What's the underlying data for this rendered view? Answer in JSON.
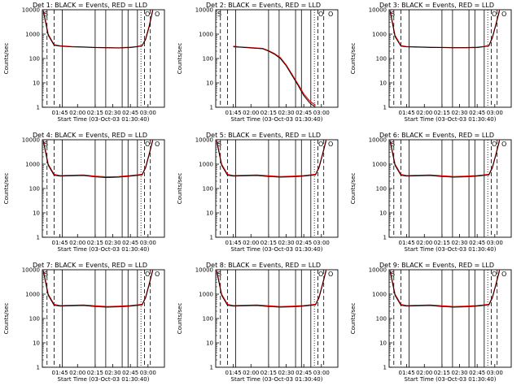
{
  "page": {
    "panel_titles": [
      "Det 1:  BLACK = Events, RED = LLD",
      "Det 2:  BLACK = Events, RED = LLD",
      "Det 3:  BLACK = Events, RED = LLD",
      "Det 4:  BLACK = Events, RED = LLD",
      "Det 5:  BLACK = Events, RED = LLD",
      "Det 6:  BLACK = Events, RED = LLD",
      "Det 7:  BLACK = Events, RED = LLD",
      "Det 8:  BLACK = Events, RED = LLD",
      "Det 9:  BLACK = Events, RED = LLD"
    ]
  },
  "chart_data": {
    "type": "line",
    "layout": "3x3 grid of small multiples",
    "colors": {
      "events": "#000000",
      "lld": "#ff0000"
    },
    "series_names": [
      "BLACK = Events",
      "RED = LLD"
    ],
    "xlabel": "Start Time (03-Oct-03 01:30:40)",
    "ylabel": "Counts/sec",
    "x_range": [
      "01:30",
      "03:14"
    ],
    "x_ticks": [
      "01:45",
      "02:00",
      "02:15",
      "02:30",
      "02:45",
      "03:00"
    ],
    "yscale": "log",
    "ylim": [
      1,
      10000
    ],
    "y_ticks": [
      "1",
      "10",
      "100",
      "1000",
      "10000"
    ],
    "markers": [
      "S",
      "O",
      "O"
    ],
    "panels": [
      {
        "title": "Det 1:  BLACK = Events, RED = LLD",
        "x": [
          "01:31",
          "01:35",
          "01:40",
          "01:45",
          "01:55",
          "02:05",
          "02:15",
          "02:25",
          "02:35",
          "02:45",
          "02:50",
          "02:55",
          "02:58",
          "03:01",
          "03:04"
        ],
        "events": [
          8000,
          900,
          350,
          320,
          300,
          290,
          280,
          275,
          270,
          280,
          300,
          330,
          600,
          2000,
          9000
        ],
        "lld": [
          9000,
          1000,
          370,
          330,
          310,
          300,
          285,
          280,
          275,
          290,
          310,
          340,
          650,
          2200,
          10000
        ]
      },
      {
        "title": "Det 2:  BLACK = Events, RED = LLD",
        "x": [
          "01:45",
          "01:50",
          "02:00",
          "02:10",
          "02:15",
          "02:20",
          "02:25",
          "02:30",
          "02:35",
          "02:40",
          "02:45",
          "02:50",
          "02:55"
        ],
        "events": [
          300,
          290,
          270,
          250,
          200,
          150,
          100,
          50,
          20,
          8,
          3,
          1.5,
          1
        ],
        "lld": [
          320,
          300,
          280,
          260,
          210,
          160,
          110,
          55,
          22,
          9,
          3.5,
          1.8,
          1.2
        ]
      },
      {
        "title": "Det 3:  BLACK = Events, RED = LLD",
        "x": [
          "01:31",
          "01:35",
          "01:40",
          "01:45",
          "01:55",
          "02:05",
          "02:15",
          "02:25",
          "02:35",
          "02:45",
          "02:50",
          "02:55",
          "02:58",
          "03:01",
          "03:04"
        ],
        "events": [
          8000,
          800,
          320,
          300,
          290,
          285,
          280,
          275,
          275,
          280,
          300,
          330,
          700,
          2500,
          9000
        ],
        "lld": [
          9000,
          900,
          340,
          310,
          300,
          290,
          285,
          280,
          280,
          290,
          310,
          340,
          750,
          2700,
          10000
        ]
      },
      {
        "title": "Det 4:  BLACK = Events, RED = LLD",
        "x": [
          "01:31",
          "01:35",
          "01:40",
          "01:45",
          "01:55",
          "02:05",
          "02:15",
          "02:25",
          "02:35",
          "02:45",
          "02:50",
          "02:55",
          "02:58",
          "03:01",
          "03:04"
        ],
        "events": [
          8000,
          900,
          350,
          320,
          330,
          340,
          300,
          280,
          290,
          320,
          340,
          360,
          700,
          2500,
          9000
        ],
        "lld": [
          9000,
          1000,
          380,
          340,
          350,
          360,
          320,
          300,
          310,
          340,
          360,
          380,
          750,
          2700,
          10000
        ]
      },
      {
        "title": "Det 5:  BLACK = Events, RED = LLD",
        "x": [
          "01:31",
          "01:35",
          "01:40",
          "01:45",
          "01:55",
          "02:05",
          "02:15",
          "02:25",
          "02:35",
          "02:45",
          "02:50",
          "02:55",
          "02:58",
          "03:01",
          "03:04"
        ],
        "events": [
          8000,
          900,
          350,
          320,
          330,
          340,
          310,
          290,
          300,
          320,
          340,
          360,
          700,
          2500,
          9000
        ],
        "lld": [
          9000,
          1000,
          380,
          340,
          350,
          360,
          330,
          310,
          320,
          340,
          360,
          380,
          750,
          2700,
          10000
        ]
      },
      {
        "title": "Det 6:  BLACK = Events, RED = LLD",
        "x": [
          "01:31",
          "01:35",
          "01:40",
          "01:45",
          "01:55",
          "02:05",
          "02:15",
          "02:25",
          "02:35",
          "02:45",
          "02:50",
          "02:55",
          "02:58",
          "03:01",
          "03:04"
        ],
        "events": [
          8000,
          900,
          350,
          320,
          330,
          340,
          310,
          290,
          300,
          320,
          340,
          360,
          700,
          2500,
          9000
        ],
        "lld": [
          9000,
          1000,
          380,
          340,
          350,
          360,
          330,
          310,
          320,
          340,
          360,
          380,
          750,
          2700,
          10000
        ]
      },
      {
        "title": "Det 7:  BLACK = Events, RED = LLD",
        "x": [
          "01:31",
          "01:35",
          "01:40",
          "01:45",
          "01:55",
          "02:05",
          "02:15",
          "02:25",
          "02:35",
          "02:45",
          "02:50",
          "02:55",
          "02:58",
          "03:01",
          "03:04"
        ],
        "events": [
          8000,
          900,
          350,
          320,
          330,
          340,
          310,
          290,
          300,
          320,
          340,
          360,
          700,
          2500,
          9000
        ],
        "lld": [
          9000,
          1000,
          380,
          340,
          350,
          360,
          330,
          310,
          320,
          340,
          360,
          380,
          750,
          2700,
          10000
        ]
      },
      {
        "title": "Det 8:  BLACK = Events, RED = LLD",
        "x": [
          "01:31",
          "01:35",
          "01:40",
          "01:45",
          "01:55",
          "02:05",
          "02:15",
          "02:25",
          "02:35",
          "02:45",
          "02:50",
          "02:55",
          "02:58",
          "03:01",
          "03:04"
        ],
        "events": [
          8000,
          900,
          350,
          320,
          330,
          340,
          310,
          290,
          300,
          320,
          340,
          360,
          700,
          2500,
          9000
        ],
        "lld": [
          9000,
          1000,
          380,
          340,
          350,
          360,
          330,
          310,
          320,
          340,
          360,
          380,
          750,
          2700,
          10000
        ]
      },
      {
        "title": "Det 9:  BLACK = Events, RED = LLD",
        "x": [
          "01:31",
          "01:35",
          "01:40",
          "01:45",
          "01:55",
          "02:05",
          "02:15",
          "02:25",
          "02:35",
          "02:45",
          "02:50",
          "02:55",
          "02:58",
          "03:01",
          "03:04"
        ],
        "events": [
          8000,
          900,
          350,
          320,
          330,
          340,
          310,
          290,
          300,
          320,
          340,
          360,
          700,
          2500,
          9000
        ],
        "lld": [
          9000,
          1000,
          380,
          340,
          350,
          360,
          330,
          310,
          320,
          340,
          360,
          380,
          750,
          2700,
          10000
        ]
      }
    ],
    "vertical_lines": {
      "solid": [
        "01:47",
        "02:15",
        "02:24",
        "02:38",
        "02:43",
        "02:51"
      ],
      "dashed": [
        "01:34",
        "01:40",
        "02:57",
        "03:02"
      ],
      "dotted": [
        "02:54"
      ]
    }
  }
}
